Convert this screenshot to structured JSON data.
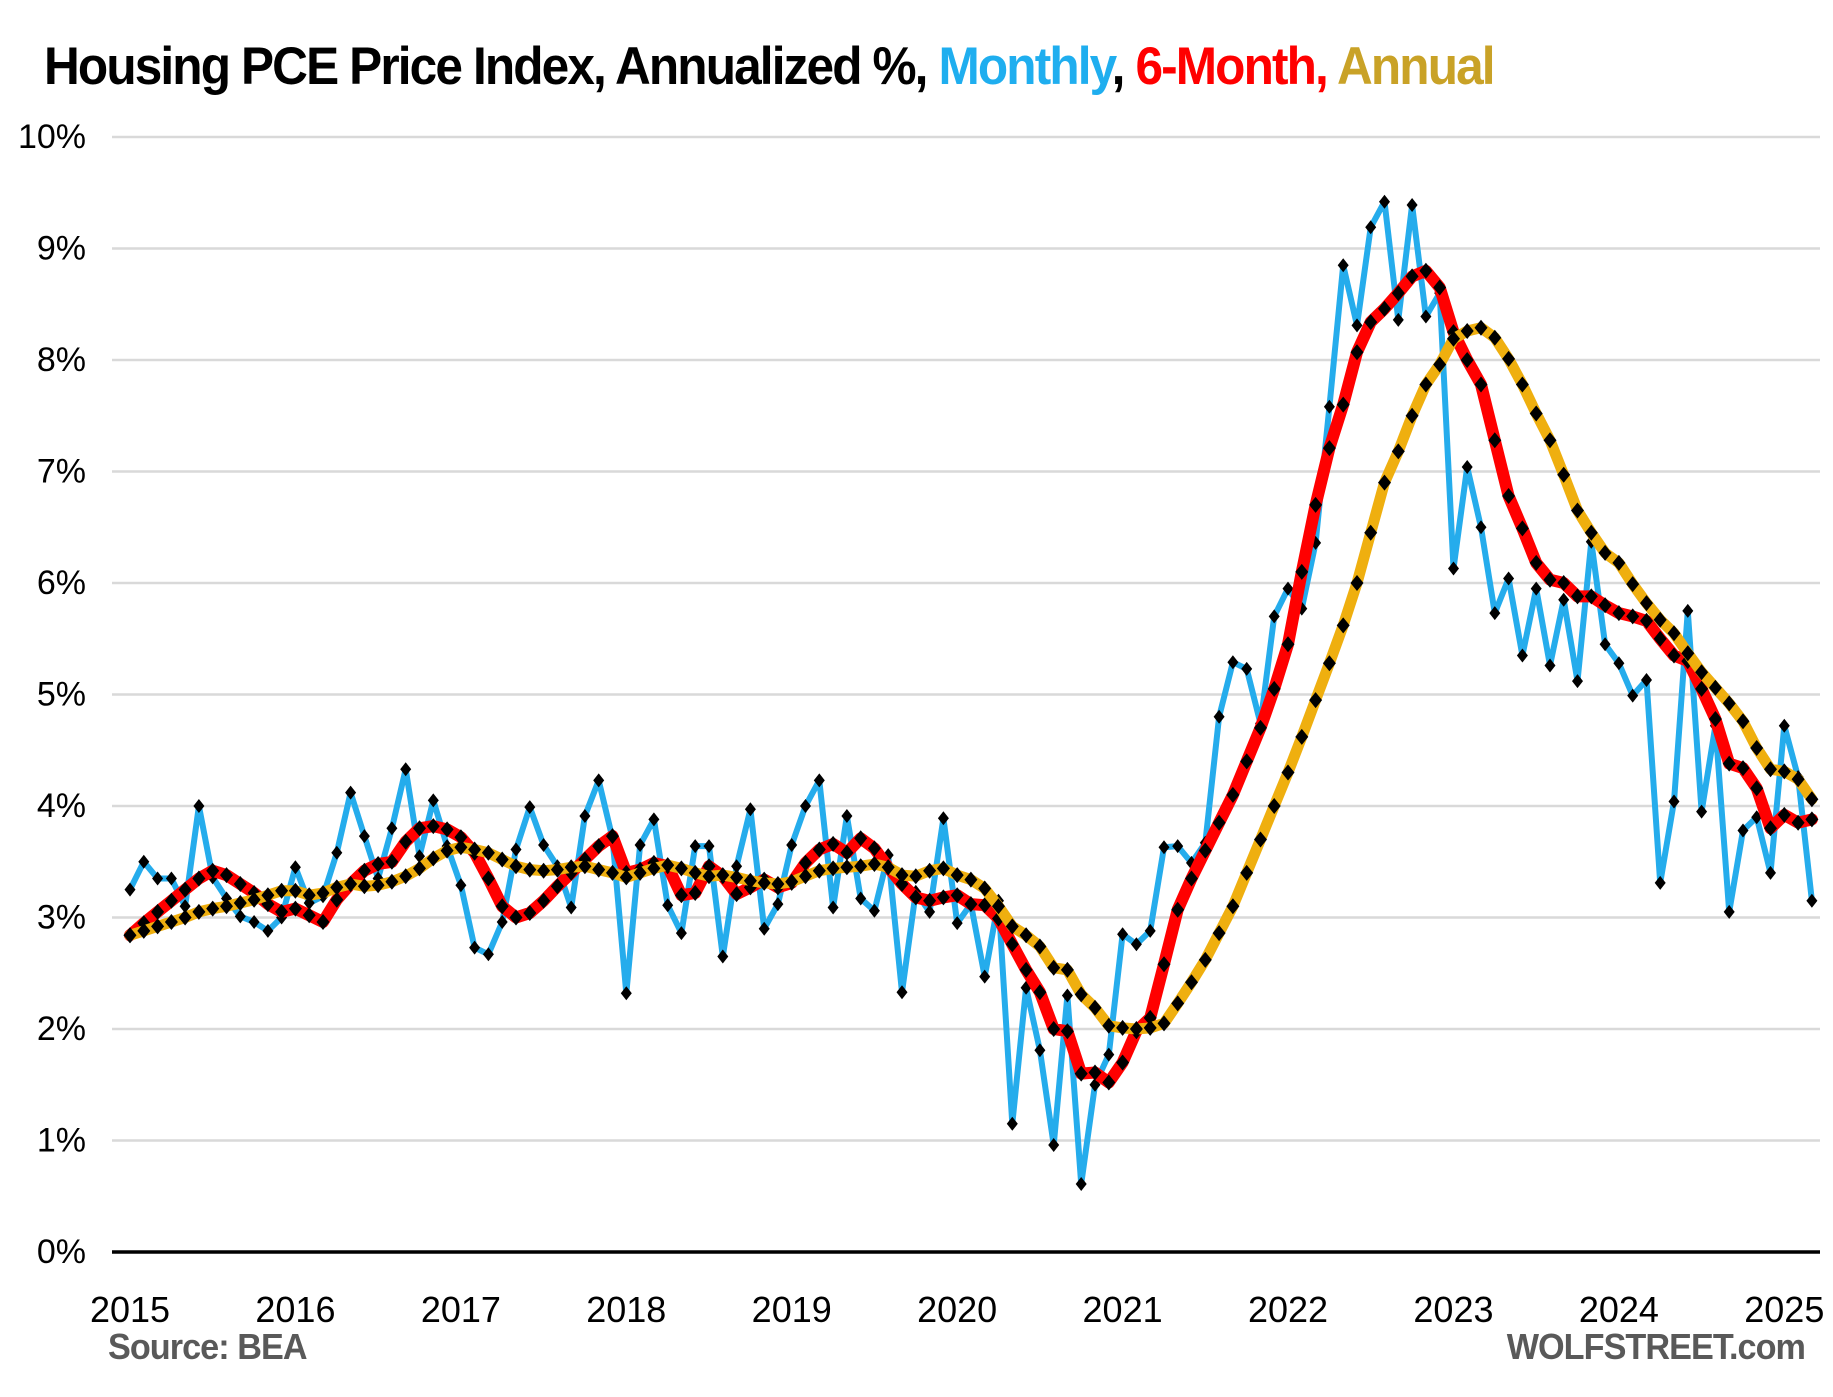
{
  "title": {
    "main": "Housing PCE Price Index, Annualized %, ",
    "monthly_label": "Monthly",
    "sep1": ", ",
    "six_month_label": "6-Month, ",
    "annual_label": "Annual"
  },
  "footer": {
    "source": "Source: BEA",
    "site": "WOLFSTREET.com"
  },
  "colors": {
    "monthly": "#25ACEC",
    "six_month": "#FF0000",
    "annual": "#EFAF0F",
    "marker": "#000000",
    "grid": "#D9D9D9",
    "axis_line": "#000000",
    "tick_text": "#000000",
    "footer_text": "#595959"
  },
  "chart_data": {
    "type": "line",
    "title": "Housing PCE Price Index, Annualized %",
    "x_start": "2015-01",
    "x_end": "2025-03",
    "x_tick_labels": [
      "2015",
      "2016",
      "2017",
      "2018",
      "2019",
      "2020",
      "2021",
      "2022",
      "2023",
      "2024",
      "2025"
    ],
    "y_tick_labels": [
      "10%",
      "9%",
      "8%",
      "7%",
      "6%",
      "5%",
      "4%",
      "3%",
      "2%",
      "1%",
      "0%"
    ],
    "ylim": [
      0,
      10
    ],
    "grid": "horizontal",
    "legend_position": "in-title",
    "marker": "diamond",
    "series": [
      {
        "name": "Monthly",
        "values": [
          3.25,
          3.5,
          3.35,
          3.35,
          3.1,
          4.0,
          3.36,
          3.17,
          3.01,
          2.96,
          2.88,
          3.0,
          3.45,
          3.13,
          3.19,
          3.58,
          4.12,
          3.73,
          3.35,
          3.8,
          4.33,
          3.55,
          4.05,
          3.64,
          3.29,
          2.73,
          2.67,
          2.96,
          3.61,
          3.99,
          3.65,
          3.46,
          3.09,
          3.91,
          4.23,
          3.71,
          2.32,
          3.65,
          3.88,
          3.11,
          2.86,
          3.64,
          3.64,
          2.65,
          3.46,
          3.97,
          2.9,
          3.12,
          3.65,
          4.0,
          4.23,
          3.09,
          3.91,
          3.17,
          3.06,
          3.56,
          2.33,
          3.23,
          3.05,
          3.89,
          2.95,
          3.12,
          2.47,
          3.15,
          1.15,
          2.37,
          1.81,
          0.96,
          2.3,
          0.61,
          1.5,
          1.77,
          2.85,
          2.76,
          2.88,
          3.63,
          3.64,
          3.49,
          3.67,
          4.8,
          5.29,
          5.23,
          4.74,
          5.7,
          5.95,
          5.77,
          6.36,
          7.58,
          8.85,
          8.31,
          9.19,
          9.42,
          8.36,
          9.39,
          8.39,
          8.6,
          6.13,
          7.04,
          6.5,
          5.73,
          6.04,
          5.35,
          5.95,
          5.26,
          5.85,
          5.12,
          6.37,
          5.45,
          5.28,
          4.99,
          5.13,
          3.31,
          4.04,
          5.75,
          3.95,
          4.72,
          3.05,
          3.78,
          3.9,
          3.4,
          4.72,
          4.26,
          3.15
        ]
      },
      {
        "name": "6-Month",
        "values": [
          2.84,
          2.95,
          3.05,
          3.15,
          3.25,
          3.35,
          3.42,
          3.38,
          3.3,
          3.22,
          3.12,
          3.05,
          3.08,
          3.02,
          2.96,
          3.16,
          3.3,
          3.42,
          3.48,
          3.5,
          3.68,
          3.8,
          3.82,
          3.79,
          3.72,
          3.58,
          3.35,
          3.1,
          3.0,
          3.04,
          3.15,
          3.28,
          3.4,
          3.52,
          3.64,
          3.73,
          3.4,
          3.43,
          3.49,
          3.46,
          3.2,
          3.22,
          3.46,
          3.37,
          3.21,
          3.27,
          3.34,
          3.27,
          3.31,
          3.49,
          3.61,
          3.66,
          3.58,
          3.71,
          3.62,
          3.45,
          3.3,
          3.18,
          3.15,
          3.18,
          3.2,
          3.12,
          3.11,
          2.99,
          2.76,
          2.53,
          2.33,
          2.0,
          1.98,
          1.6,
          1.61,
          1.52,
          1.7,
          1.98,
          2.1,
          2.58,
          3.07,
          3.35,
          3.6,
          3.85,
          4.1,
          4.4,
          4.7,
          5.05,
          5.45,
          6.1,
          6.7,
          7.21,
          7.6,
          8.07,
          8.34,
          8.46,
          8.6,
          8.75,
          8.8,
          8.65,
          8.25,
          8.0,
          7.78,
          7.28,
          6.78,
          6.49,
          6.18,
          6.03,
          6.0,
          5.88,
          5.88,
          5.8,
          5.73,
          5.7,
          5.66,
          5.5,
          5.35,
          5.3,
          5.05,
          4.78,
          4.38,
          4.34,
          4.16,
          3.8,
          3.92,
          3.85,
          3.88
        ]
      },
      {
        "name": "Annual",
        "values": [
          2.84,
          2.88,
          2.92,
          2.96,
          3.0,
          3.05,
          3.08,
          3.1,
          3.13,
          3.16,
          3.2,
          3.24,
          3.24,
          3.2,
          3.22,
          3.27,
          3.3,
          3.28,
          3.29,
          3.32,
          3.37,
          3.44,
          3.53,
          3.6,
          3.63,
          3.61,
          3.58,
          3.52,
          3.46,
          3.43,
          3.42,
          3.43,
          3.45,
          3.46,
          3.43,
          3.4,
          3.36,
          3.4,
          3.44,
          3.47,
          3.44,
          3.4,
          3.37,
          3.38,
          3.36,
          3.33,
          3.31,
          3.3,
          3.32,
          3.37,
          3.42,
          3.44,
          3.45,
          3.46,
          3.48,
          3.45,
          3.38,
          3.37,
          3.42,
          3.44,
          3.38,
          3.34,
          3.26,
          3.1,
          2.92,
          2.84,
          2.74,
          2.55,
          2.53,
          2.31,
          2.19,
          2.03,
          2.01,
          2.0,
          2.01,
          2.05,
          2.23,
          2.42,
          2.62,
          2.86,
          3.1,
          3.4,
          3.7,
          4.0,
          4.3,
          4.62,
          4.95,
          5.28,
          5.62,
          6.0,
          6.45,
          6.9,
          7.18,
          7.5,
          7.78,
          7.96,
          8.19,
          8.26,
          8.29,
          8.2,
          8.01,
          7.78,
          7.52,
          7.28,
          6.97,
          6.65,
          6.45,
          6.27,
          6.18,
          5.99,
          5.82,
          5.67,
          5.55,
          5.37,
          5.2,
          5.06,
          4.92,
          4.76,
          4.52,
          4.33,
          4.31,
          4.24,
          4.06
        ]
      }
    ]
  }
}
